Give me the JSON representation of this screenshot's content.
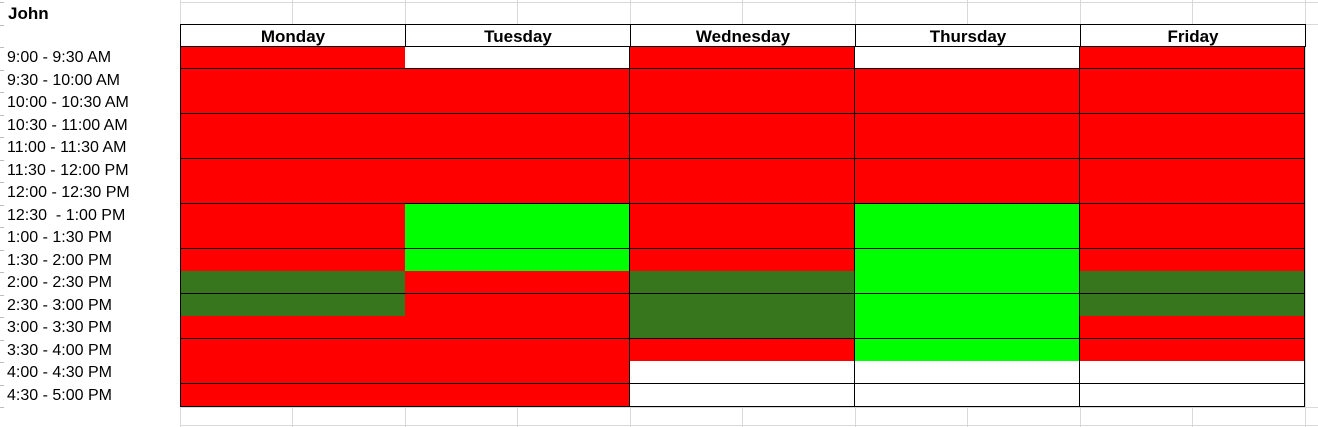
{
  "sheet": {
    "person_name": "John",
    "days": [
      "Monday",
      "Tuesday",
      "Wednesday",
      "Thursday",
      "Friday"
    ],
    "time_slots": [
      "9:00 - 9:30 AM",
      "9:30 - 10:00 AM",
      "10:00 - 10:30 AM",
      "10:30 - 11:00 AM",
      "11:00 - 11:30 AM",
      "11:30 - 12:00 PM",
      "12:00 - 12:30 PM",
      "12:30  - 1:00 PM",
      "1:00 - 1:30 PM",
      "1:30 - 2:00 PM",
      "2:00 - 2:30 PM",
      "2:30 - 3:00 PM",
      "3:00 - 3:30 PM",
      "3:30 - 4:00 PM",
      "4:00 - 4:30 PM",
      "4:30 - 5:00 PM"
    ],
    "status_colors": {
      "red": "#ff0000",
      "light_green": "#00ff00",
      "dark_green": "#38761d",
      "white": "#ffffff"
    },
    "grid": [
      [
        "red",
        "white",
        "red",
        "white",
        "red"
      ],
      [
        "red",
        "red",
        "red",
        "red",
        "red"
      ],
      [
        "red",
        "red",
        "red",
        "red",
        "red"
      ],
      [
        "red",
        "red",
        "red",
        "red",
        "red"
      ],
      [
        "red",
        "red",
        "red",
        "red",
        "red"
      ],
      [
        "red",
        "red",
        "red",
        "red",
        "red"
      ],
      [
        "red",
        "red",
        "red",
        "red",
        "red"
      ],
      [
        "red",
        "light_green",
        "red",
        "light_green",
        "red"
      ],
      [
        "red",
        "light_green",
        "red",
        "light_green",
        "red"
      ],
      [
        "red",
        "light_green",
        "red",
        "light_green",
        "red"
      ],
      [
        "dark_green",
        "red",
        "dark_green",
        "light_green",
        "dark_green"
      ],
      [
        "dark_green",
        "red",
        "dark_green",
        "light_green",
        "dark_green"
      ],
      [
        "red",
        "red",
        "dark_green",
        "light_green",
        "red"
      ],
      [
        "red",
        "red",
        "red",
        "light_green",
        "red"
      ],
      [
        "red",
        "red",
        "white",
        "white",
        "white"
      ],
      [
        "red",
        "red",
        "white",
        "white",
        "white"
      ]
    ]
  }
}
